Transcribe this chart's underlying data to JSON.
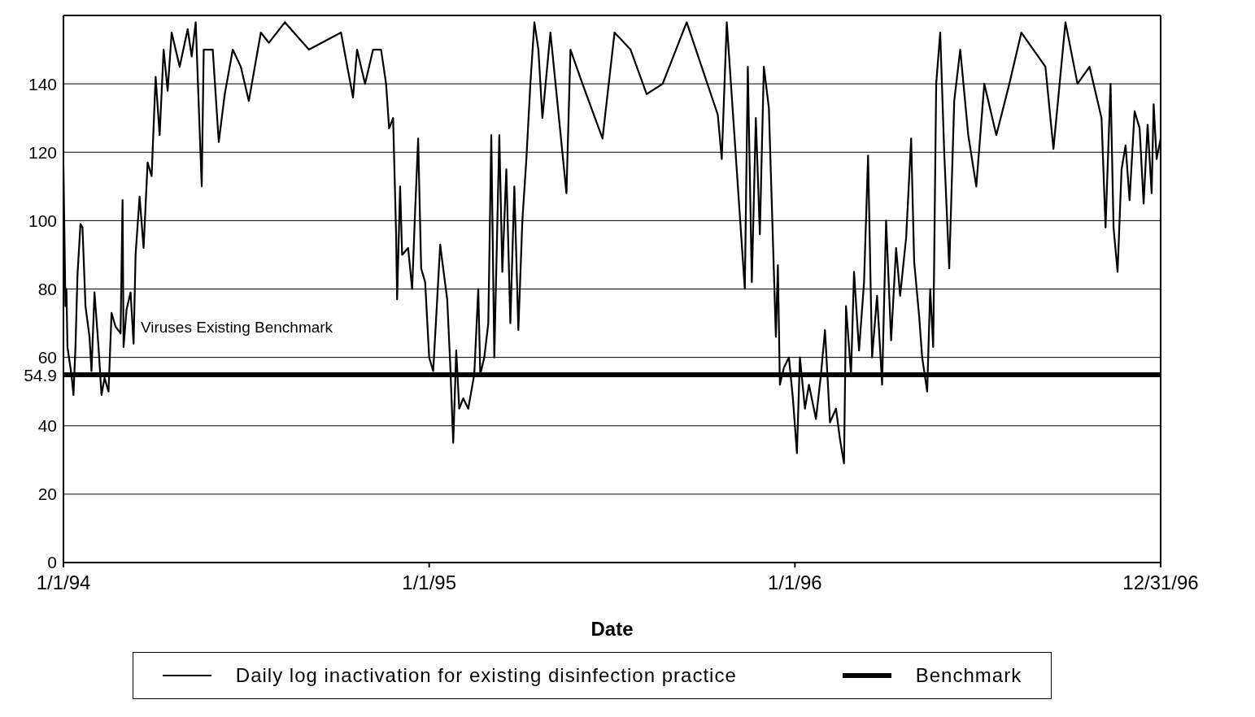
{
  "chart_data": {
    "type": "line",
    "xlabel": "Date",
    "xlim": [
      "1994-01-01",
      "1996-12-31"
    ],
    "xticks": [
      {
        "value": "1994-01-01",
        "label": "1/1/94"
      },
      {
        "value": "1995-01-01",
        "label": "1/1/95"
      },
      {
        "value": "1996-01-01",
        "label": "1/1/96"
      },
      {
        "value": "1996-12-31",
        "label": "12/31/96"
      }
    ],
    "ylim": [
      0,
      160
    ],
    "yticks": [
      0,
      20,
      40,
      54.9,
      60,
      80,
      100,
      120,
      140
    ],
    "grid": "y",
    "legend": "bottom",
    "marker": "none",
    "line_style": "solid",
    "annotations": [
      {
        "text": "Viruses Existing Benchmark",
        "x": "1994-03-15",
        "y": 69
      }
    ],
    "series": [
      {
        "name": "Daily log inactivation for existing disinfection practice",
        "color": "#000000",
        "x": [
          "1994-01-01",
          "1994-01-03",
          "1994-01-04",
          "1994-01-05",
          "1994-01-09",
          "1994-01-11",
          "1994-01-13",
          "1994-01-15",
          "1994-01-18",
          "1994-01-20",
          "1994-01-23",
          "1994-01-27",
          "1994-01-29",
          "1994-02-01",
          "1994-02-05",
          "1994-02-08",
          "1994-02-11",
          "1994-02-15",
          "1994-02-18",
          "1994-02-22",
          "1994-02-27",
          "1994-03-01",
          "1994-03-02",
          "1994-03-05",
          "1994-03-09",
          "1994-03-12",
          "1994-03-14",
          "1994-03-18",
          "1994-03-22",
          "1994-03-26",
          "1994-03-30",
          "1994-04-03",
          "1994-04-07",
          "1994-04-11",
          "1994-04-15",
          "1994-04-19",
          "1994-04-27",
          "1994-05-05",
          "1994-05-09",
          "1994-05-13",
          "1994-05-19",
          "1994-05-21",
          "1994-05-30",
          "1994-06-05",
          "1994-06-11",
          "1994-06-19",
          "1994-06-27",
          "1994-07-05",
          "1994-07-17",
          "1994-07-25",
          "1994-08-10",
          "1994-09-03",
          "1994-10-05",
          "1994-10-17",
          "1994-10-21",
          "1994-10-29",
          "1994-11-06",
          "1994-11-14",
          "1994-11-19",
          "1994-11-22",
          "1994-11-26",
          "1994-11-29",
          "1994-11-30",
          "1994-12-03",
          "1994-12-05",
          "1994-12-11",
          "1994-12-15",
          "1994-12-18",
          "1994-12-21",
          "1994-12-24",
          "1994-12-28",
          "1995-01-01",
          "1995-01-05",
          "1995-01-09",
          "1995-01-12",
          "1995-01-15",
          "1995-01-19",
          "1995-01-22",
          "1995-01-25",
          "1995-01-28",
          "1995-01-31",
          "1995-02-04",
          "1995-02-09",
          "1995-02-15",
          "1995-02-19",
          "1995-02-21",
          "1995-02-25",
          "1995-03-01",
          "1995-03-04",
          "1995-03-07",
          "1995-03-12",
          "1995-03-15",
          "1995-03-19",
          "1995-03-23",
          "1995-03-27",
          "1995-03-31",
          "1995-04-04",
          "1995-04-08",
          "1995-04-12",
          "1995-04-16",
          "1995-04-20",
          "1995-04-24",
          "1995-05-02",
          "1995-05-18",
          "1995-05-22",
          "1995-06-03",
          "1995-06-23",
          "1995-07-05",
          "1995-07-21",
          "1995-08-06",
          "1995-08-22",
          "1995-09-15",
          "1995-10-16",
          "1995-10-20",
          "1995-10-25",
          "1995-11-12",
          "1995-11-15",
          "1995-11-19",
          "1995-11-23",
          "1995-11-27",
          "1995-12-01",
          "1995-12-06",
          "1995-12-13",
          "1995-12-15",
          "1995-12-17",
          "1995-12-21",
          "1995-12-26",
          "1995-12-30",
          "1996-01-03",
          "1996-01-06",
          "1996-01-11",
          "1996-01-15",
          "1996-01-22",
          "1996-01-27",
          "1996-01-31",
          "1996-02-05",
          "1996-02-11",
          "1996-02-15",
          "1996-02-19",
          "1996-02-21",
          "1996-02-26",
          "1996-02-29",
          "1996-03-05",
          "1996-03-10",
          "1996-03-14",
          "1996-03-18",
          "1996-03-23",
          "1996-03-28",
          "1996-04-01",
          "1996-04-06",
          "1996-04-11",
          "1996-04-15",
          "1996-04-21",
          "1996-04-26",
          "1996-04-29",
          "1996-05-04",
          "1996-05-07",
          "1996-05-12",
          "1996-05-15",
          "1996-05-18",
          "1996-05-21",
          "1996-05-25",
          "1996-05-29",
          "1996-06-03",
          "1996-06-08",
          "1996-06-14",
          "1996-06-22",
          "1996-06-30",
          "1996-07-08",
          "1996-07-20",
          "1996-08-02",
          "1996-08-14",
          "1996-08-26",
          "1996-09-07",
          "1996-09-15",
          "1996-09-27",
          "1996-10-09",
          "1996-10-21",
          "1996-11-02",
          "1996-11-06",
          "1996-11-11",
          "1996-11-14",
          "1996-11-18",
          "1996-11-22",
          "1996-11-26",
          "1996-11-30",
          "1996-12-05",
          "1996-12-10",
          "1996-12-14",
          "1996-12-18",
          "1996-12-22",
          "1996-12-24",
          "1996-12-27",
          "1996-12-31"
        ],
        "values": [
          116,
          75,
          80,
          63,
          55,
          49,
          63,
          84,
          99,
          98,
          75,
          66,
          56,
          79,
          63,
          49,
          54,
          50,
          73,
          69,
          67,
          106,
          63,
          74,
          79,
          64,
          90,
          107,
          92,
          117,
          113,
          142,
          125,
          150,
          138,
          155,
          145,
          156,
          148,
          158,
          110,
          150,
          150,
          123,
          137,
          150,
          145,
          135,
          155,
          152,
          158,
          150,
          155,
          136,
          150,
          140,
          150,
          150,
          140,
          127,
          130,
          96,
          77,
          110,
          90,
          92,
          80,
          103,
          124,
          86,
          82,
          60,
          56,
          77,
          93,
          86,
          77,
          58,
          35,
          62,
          45,
          48,
          45,
          55,
          80,
          55,
          60,
          70,
          125,
          60,
          125,
          85,
          115,
          70,
          110,
          68,
          100,
          118,
          140,
          158,
          150,
          130,
          155,
          108,
          150,
          140,
          124,
          155,
          150,
          137,
          140,
          158,
          131,
          118,
          158,
          80,
          145,
          82,
          130,
          96,
          145,
          133,
          66,
          87,
          52,
          57,
          60,
          48,
          32,
          60,
          45,
          52,
          42,
          55,
          68,
          41,
          45,
          36,
          29,
          75,
          55,
          85,
          62,
          82,
          119,
          60,
          78,
          52,
          100,
          65,
          92,
          78,
          95,
          124,
          88,
          72,
          60,
          50,
          80,
          63,
          140,
          155,
          120,
          86,
          135,
          150,
          125,
          110,
          140,
          125,
          140,
          155,
          150,
          145,
          121,
          158,
          140,
          145,
          130,
          98,
          140,
          98,
          85,
          115,
          122,
          106,
          132,
          127,
          105,
          128,
          108,
          134,
          118,
          124
        ]
      },
      {
        "name": "Benchmark",
        "color": "#000000",
        "x": [
          "1994-01-01",
          "1996-12-31"
        ],
        "values": [
          54.9,
          54.9
        ]
      }
    ]
  }
}
